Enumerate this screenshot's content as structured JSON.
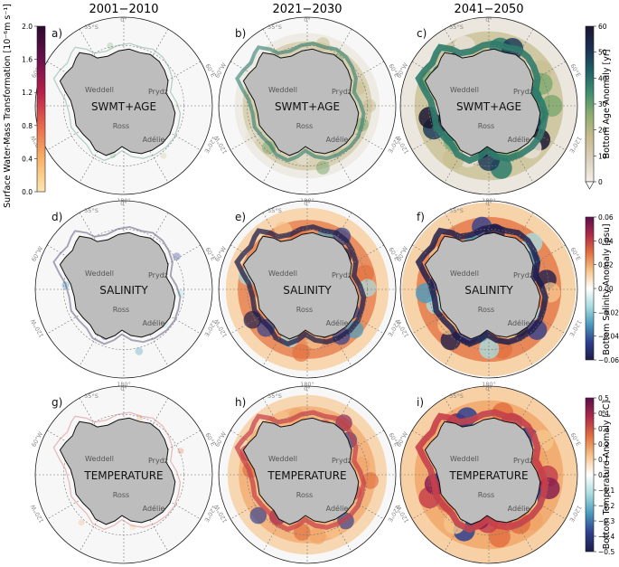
{
  "columns": [
    "2001−2010",
    "2021−2030",
    "2041−2050"
  ],
  "left_colorbar": {
    "label": "Surface Water-Mass Transformation [10⁻⁶m s⁻¹]",
    "ticks": [
      "0.0",
      "0.4",
      "0.8",
      "1.2",
      "1.6",
      "2.0"
    ],
    "colors": [
      "#fde7b0",
      "#f7b267",
      "#e8674a",
      "#b81f4a",
      "#6a0f4c",
      "#2b0a2e"
    ]
  },
  "right_colorbars": [
    {
      "label": "Bottom Age Anomaly [yr]",
      "ticks": [
        "0",
        "10",
        "20",
        "30",
        "40",
        "50",
        "60"
      ],
      "colors": [
        "#f4eee8",
        "#dcd0bf",
        "#c8bb8e",
        "#8fae6e",
        "#3f8f6e",
        "#1e5f66",
        "#1b2f52",
        "#1b1530"
      ]
    },
    {
      "label": "Bottom Salinity Anomaly [psu]",
      "ticks": [
        "0.06",
        "0.04",
        "0.02",
        "0.00",
        "−0.02",
        "−0.04",
        "−0.06"
      ],
      "colors": [
        "#5a0f4a",
        "#b02a4a",
        "#e3703f",
        "#f7c48a",
        "#ffffff",
        "#a8dde0",
        "#4a9cc0",
        "#2f3f8f",
        "#1e1d4a"
      ]
    },
    {
      "label": "Bottom Temperature Anomaly [°C]",
      "ticks": [
        "0.5",
        "0.4",
        "0.3",
        "0.2",
        "0.1",
        "0.0",
        "−0.1",
        "−0.2",
        "−0.3",
        "−0.4",
        "−0.5"
      ],
      "colors": [
        "#5a0f4a",
        "#b02a4a",
        "#e3703f",
        "#f7c48a",
        "#ffffff",
        "#a8dde0",
        "#4a9cc0",
        "#2f3f8f",
        "#1e1d4a"
      ]
    }
  ],
  "map_labels": {
    "lat": "55°S",
    "lon_top": "0°",
    "lon_bottom": "180°",
    "lon_left_top": "60°W",
    "lon_left_bottom": "120°W",
    "lon_right_top": "60°E",
    "lon_right_bottom": "120°E",
    "weddell": "Weddell",
    "prydz": "Prydz",
    "ross": "Ross",
    "adelie": "Adélie"
  },
  "rows": [
    {
      "title": "SWMT+AGE",
      "letters": [
        "a)",
        "b)",
        "c)"
      ],
      "intensity": [
        0.05,
        0.5,
        1.0
      ]
    },
    {
      "title": "SALINITY",
      "letters": [
        "d)",
        "e)",
        "f)"
      ],
      "intensity": [
        0.15,
        0.75,
        0.9
      ]
    },
    {
      "title": "TEMPERATURE",
      "letters": [
        "g)",
        "h)",
        "i)"
      ],
      "intensity": [
        0.05,
        0.7,
        1.0
      ]
    }
  ],
  "chart_data": {
    "type": "heatmap",
    "layout": "3x3 grid of south polar stereographic maps",
    "panel_columns": [
      "2001−2010",
      "2021−2030",
      "2041−2050"
    ],
    "panel_rows": [
      "SWMT+AGE",
      "SALINITY",
      "TEMPERATURE"
    ],
    "panel_letters": [
      [
        "a)",
        "b)",
        "c)"
      ],
      [
        "d)",
        "e)",
        "f)"
      ],
      [
        "g)",
        "h)",
        "i)"
      ]
    ],
    "colorbars": [
      {
        "label": "Surface Water-Mass Transformation [10⁻⁶m s⁻¹]",
        "range": [
          0.0,
          2.0
        ],
        "placement": "left"
      },
      {
        "label": "Bottom Age Anomaly [yr]",
        "range": [
          0,
          60
        ],
        "placement": "right"
      },
      {
        "label": "Bottom Salinity Anomaly [psu]",
        "range": [
          -0.06,
          0.06
        ],
        "placement": "right"
      },
      {
        "label": "Bottom Temperature Anomaly [°C]",
        "range": [
          -0.5,
          0.5
        ],
        "placement": "right"
      }
    ],
    "regions": [
      "Weddell",
      "Prydz",
      "Ross",
      "Adélie"
    ]
  }
}
